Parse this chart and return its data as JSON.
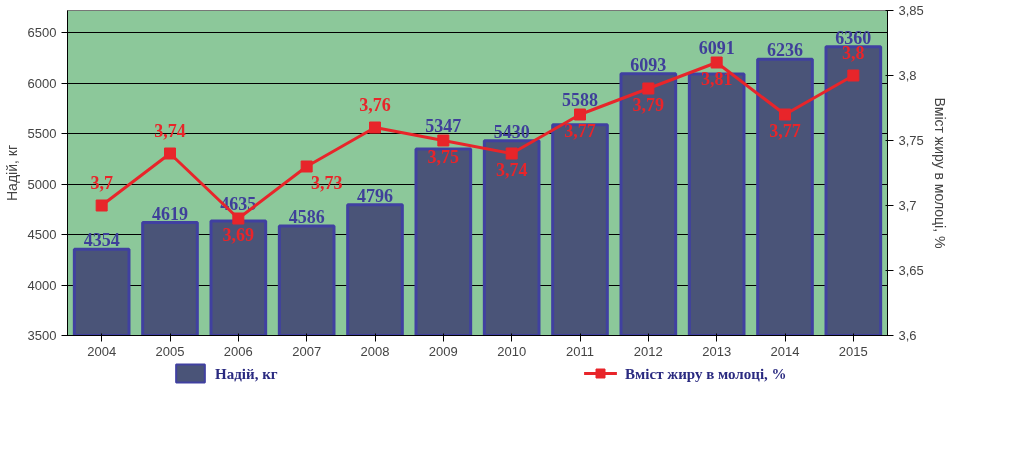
{
  "chart_data": {
    "type": "bar",
    "ylabel": "Надій, кг",
    "y2label": "Вміст жиру в молоці, %",
    "categories": [
      "2004",
      "2005",
      "2006",
      "2007",
      "2008",
      "2009",
      "2010",
      "2011",
      "2012",
      "2013",
      "2014",
      "2015"
    ],
    "series": [
      {
        "name": "Надій, кг",
        "color": "#4a5478",
        "values": [
          4354,
          4619,
          4635,
          4586,
          4796,
          5347,
          5430,
          5588,
          6093,
          6091,
          6236,
          6360
        ],
        "value_labels": [
          "4354",
          "4619",
          "4635",
          "4586",
          "4796",
          "5347",
          "5430",
          "5588",
          "6093",
          "6091",
          "6236",
          "6360"
        ]
      },
      {
        "name": "Вміст жиру в молоці, %",
        "type": "line",
        "axis": "y2",
        "color": "#e8252a",
        "marker": "square",
        "values": [
          3.7,
          3.74,
          3.69,
          3.73,
          3.76,
          3.75,
          3.74,
          3.77,
          3.79,
          3.81,
          3.77,
          3.8
        ],
        "value_labels": [
          "3,7",
          "3,74",
          "3,69",
          "3,73",
          "3,76",
          "3,75",
          "3,74",
          "3,77",
          "3,79",
          "3,81",
          "3,77",
          "3,8"
        ]
      }
    ],
    "ylim": [
      3500,
      6720
    ],
    "yticks": [
      3500,
      4000,
      4500,
      5000,
      5500,
      6000,
      6500
    ],
    "y2lim": [
      3.6,
      3.85
    ],
    "y2ticks": [
      {
        "value": 3.6,
        "label": "3,6"
      },
      {
        "value": 3.65,
        "label": "3,65"
      },
      {
        "value": 3.7,
        "label": "3,7"
      },
      {
        "value": 3.75,
        "label": "3,75"
      },
      {
        "value": 3.8,
        "label": "3,8"
      },
      {
        "value": 3.85,
        "label": "3,85"
      }
    ],
    "grid": "y",
    "legend": "bottom"
  }
}
